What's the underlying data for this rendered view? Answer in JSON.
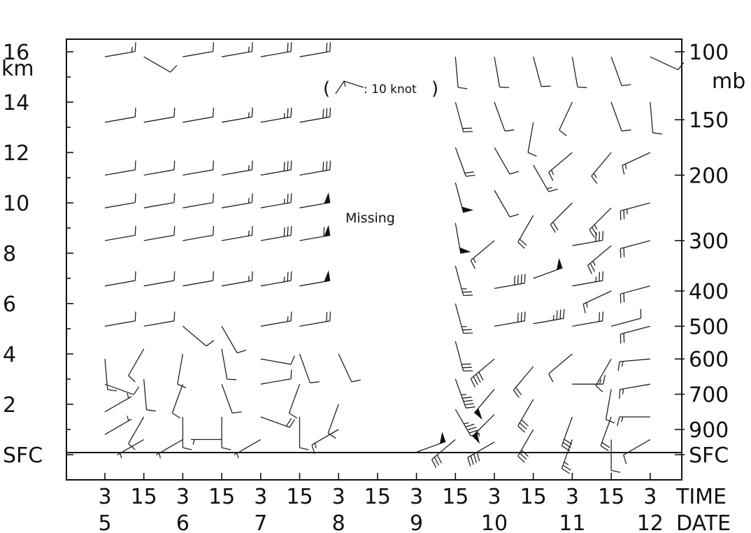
{
  "chart_data": {
    "type": "wind_barb_time_height_section",
    "legend_text": ": 10 knot",
    "legend_open": "(",
    "legend_close": ")",
    "missing_label": "Missing",
    "left_axis": {
      "unit": "km",
      "ticks": [
        "16",
        "14",
        "12",
        "10",
        "8",
        "6",
        "4",
        "2",
        "SFC"
      ],
      "values_km": [
        16,
        14,
        12,
        10,
        8,
        6,
        4,
        2,
        0
      ],
      "ylim_km": [
        -1,
        16.5
      ]
    },
    "right_axis": {
      "unit": "mb",
      "ticks": [
        "100",
        "150",
        "200",
        "300",
        "400",
        "500",
        "600",
        "700",
        "900",
        "SFC"
      ],
      "height_km": [
        16,
        13.3,
        11.1,
        8.5,
        6.5,
        5.1,
        3.8,
        2.4,
        1.0,
        0
      ]
    },
    "x_axis": {
      "time_label": "TIME",
      "date_label": "DATE",
      "time_ticks": [
        "3",
        "15",
        "3",
        "15",
        "3",
        "15",
        "3",
        "15",
        "3",
        "15",
        "3",
        "15",
        "3",
        "15",
        "3"
      ],
      "date_ticks": [
        "5",
        "6",
        "7",
        "8",
        "9",
        "10",
        "11",
        "12"
      ],
      "date_tick_index": [
        0,
        2,
        4,
        6,
        8,
        10,
        12,
        14
      ]
    },
    "missing_span_index": [
      7,
      9
    ],
    "barb_levels_km": [
      15.8,
      13.2,
      11.1,
      9.8,
      8.5,
      6.7,
      5.1,
      4.0,
      2.8,
      1.7,
      0.8,
      0.1
    ],
    "series": [
      {
        "idx": 0,
        "levels": [
          [
            15.8,
            80,
            15
          ],
          [
            13.2,
            80,
            10
          ],
          [
            11.1,
            80,
            10
          ],
          [
            9.8,
            80,
            10
          ],
          [
            8.5,
            80,
            10
          ],
          [
            6.7,
            80,
            10
          ],
          [
            5.1,
            80,
            10
          ],
          [
            3.8,
            175,
            10
          ],
          [
            2.8,
            110,
            10
          ],
          [
            1.7,
            60,
            5
          ],
          [
            0.8,
            60,
            5
          ]
        ]
      },
      {
        "idx": 1,
        "levels": [
          [
            15.8,
            120,
            10
          ],
          [
            13.2,
            80,
            10
          ],
          [
            11.1,
            80,
            10
          ],
          [
            9.8,
            80,
            10
          ],
          [
            8.5,
            80,
            10
          ],
          [
            6.7,
            80,
            10
          ],
          [
            5.1,
            80,
            10
          ],
          [
            4.2,
            210,
            10
          ],
          [
            3.0,
            175,
            10
          ],
          [
            1.5,
            210,
            10
          ],
          [
            0.6,
            240,
            5
          ]
        ]
      },
      {
        "idx": 2,
        "levels": [
          [
            15.8,
            80,
            10
          ],
          [
            13.2,
            80,
            10
          ],
          [
            11.1,
            80,
            10
          ],
          [
            9.8,
            80,
            10
          ],
          [
            8.5,
            80,
            10
          ],
          [
            6.7,
            80,
            10
          ],
          [
            5.1,
            130,
            10
          ],
          [
            4.0,
            190,
            10
          ],
          [
            2.8,
            200,
            10
          ],
          [
            1.5,
            180,
            10
          ],
          [
            0.6,
            240,
            5
          ]
        ]
      },
      {
        "idx": 3,
        "levels": [
          [
            15.8,
            80,
            15
          ],
          [
            13.2,
            80,
            15
          ],
          [
            11.1,
            80,
            15
          ],
          [
            9.8,
            80,
            15
          ],
          [
            8.5,
            80,
            15
          ],
          [
            6.7,
            80,
            15
          ],
          [
            5.1,
            150,
            10
          ],
          [
            4.2,
            170,
            10
          ],
          [
            2.8,
            160,
            10
          ],
          [
            1.5,
            180,
            10
          ],
          [
            0.6,
            270,
            5
          ]
        ]
      },
      {
        "idx": 4,
        "levels": [
          [
            15.8,
            80,
            20
          ],
          [
            13.2,
            80,
            25
          ],
          [
            11.1,
            80,
            30
          ],
          [
            9.8,
            80,
            25
          ],
          [
            8.5,
            80,
            30
          ],
          [
            6.7,
            80,
            25
          ],
          [
            5.1,
            80,
            15
          ],
          [
            3.8,
            100,
            10
          ],
          [
            2.8,
            80,
            10
          ],
          [
            1.5,
            110,
            20
          ],
          [
            0.6,
            240,
            5
          ]
        ]
      },
      {
        "idx": 5,
        "levels": [
          [
            15.8,
            80,
            20
          ],
          [
            13.2,
            80,
            30
          ],
          [
            11.1,
            80,
            30
          ],
          [
            9.8,
            80,
            50
          ],
          [
            8.5,
            80,
            60
          ],
          [
            6.7,
            80,
            50
          ],
          [
            5.1,
            80,
            20
          ],
          [
            4.0,
            160,
            10
          ],
          [
            2.8,
            200,
            10
          ],
          [
            1.5,
            180,
            10
          ]
        ]
      },
      {
        "idx": 6,
        "levels": [
          [
            4.0,
            155,
            10
          ],
          [
            2.0,
            200,
            10
          ],
          [
            1.0,
            240,
            15
          ]
        ]
      },
      {
        "idx": 8,
        "levels": [
          [
            0.1,
            70,
            50
          ]
        ]
      },
      {
        "idx": 9,
        "levels": [
          [
            15.8,
            175,
            10
          ],
          [
            14.0,
            165,
            20
          ],
          [
            12.2,
            160,
            20
          ],
          [
            10.8,
            165,
            50
          ],
          [
            9.2,
            170,
            50
          ],
          [
            7.5,
            165,
            25
          ],
          [
            6.0,
            165,
            25
          ],
          [
            4.5,
            165,
            30
          ],
          [
            3.0,
            160,
            45
          ],
          [
            1.8,
            150,
            45
          ],
          [
            0.6,
            230,
            30
          ]
        ]
      },
      {
        "idx": 10,
        "levels": [
          [
            15.8,
            170,
            10
          ],
          [
            14.0,
            160,
            10
          ],
          [
            12.2,
            150,
            10
          ],
          [
            10.5,
            150,
            10
          ],
          [
            8.5,
            230,
            15
          ],
          [
            6.6,
            80,
            40
          ],
          [
            5.1,
            80,
            30
          ],
          [
            3.8,
            230,
            40
          ],
          [
            2.6,
            220,
            50
          ],
          [
            1.6,
            225,
            55
          ],
          [
            0.5,
            240,
            40
          ]
        ]
      },
      {
        "idx": 11,
        "levels": [
          [
            15.8,
            165,
            10
          ],
          [
            13.2,
            190,
            10
          ],
          [
            11.5,
            150,
            15
          ],
          [
            9.5,
            210,
            20
          ],
          [
            7.0,
            70,
            50
          ],
          [
            5.2,
            80,
            35
          ],
          [
            3.5,
            220,
            20
          ],
          [
            2.2,
            210,
            30
          ],
          [
            1.0,
            210,
            30
          ]
        ]
      },
      {
        "idx": 12,
        "levels": [
          [
            15.8,
            170,
            10
          ],
          [
            14.0,
            205,
            10
          ],
          [
            12.0,
            230,
            15
          ],
          [
            10.0,
            225,
            20
          ],
          [
            8.3,
            80,
            30
          ],
          [
            6.7,
            80,
            25
          ],
          [
            5.1,
            80,
            20
          ],
          [
            4.0,
            230,
            10
          ],
          [
            2.8,
            90,
            15
          ],
          [
            1.5,
            200,
            30
          ],
          [
            0.6,
            200,
            25
          ]
        ]
      },
      {
        "idx": 13,
        "levels": [
          [
            15.8,
            160,
            10
          ],
          [
            14.0,
            160,
            10
          ],
          [
            12.0,
            220,
            15
          ],
          [
            9.8,
            225,
            25
          ],
          [
            8.3,
            230,
            25
          ],
          [
            6.5,
            245,
            15
          ],
          [
            5.1,
            75,
            10
          ],
          [
            3.8,
            210,
            10
          ],
          [
            2.6,
            190,
            10
          ],
          [
            1.5,
            200,
            20
          ],
          [
            0.6,
            180,
            10
          ]
        ]
      },
      {
        "idx": 14,
        "levels": [
          [
            15.8,
            115,
            10
          ],
          [
            14.0,
            175,
            10
          ],
          [
            12.0,
            245,
            15
          ],
          [
            10.0,
            255,
            25
          ],
          [
            8.5,
            255,
            20
          ],
          [
            6.7,
            255,
            20
          ],
          [
            5.1,
            255,
            20
          ],
          [
            3.8,
            265,
            15
          ],
          [
            2.8,
            260,
            15
          ],
          [
            1.5,
            270,
            15
          ],
          [
            0.6,
            240,
            10
          ]
        ]
      }
    ]
  }
}
